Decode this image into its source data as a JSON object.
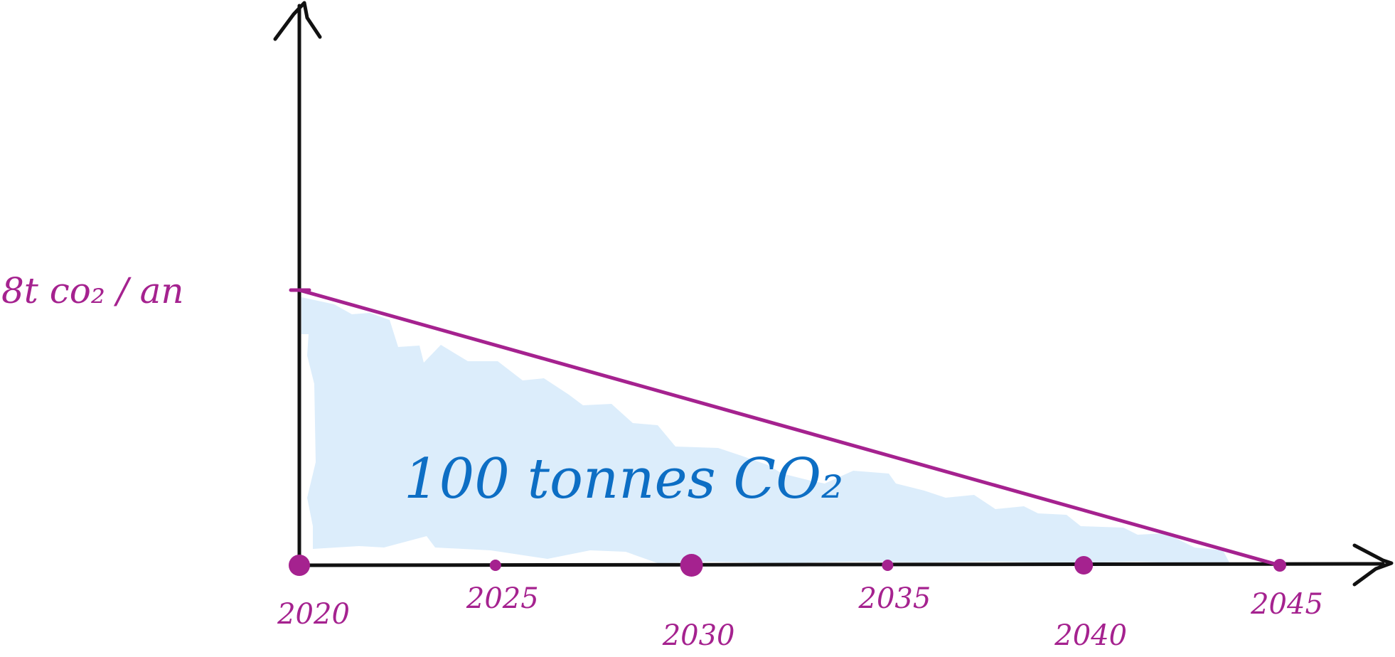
{
  "chart_data": {
    "type": "area",
    "x": [
      2020,
      2045
    ],
    "values": [
      8,
      0
    ],
    "x_ticks": [
      "2020",
      "2025",
      "2030",
      "2035",
      "2040",
      "2045"
    ],
    "xlim": [
      2020,
      2045
    ],
    "ylim": [
      0,
      8
    ],
    "y_marker_label": "8t co₂ / an",
    "area_label": "100 tonnes CO₂",
    "grid": false,
    "colors": {
      "line": "#a5228f",
      "area_fill": "#dcedfb",
      "axis": "#111111",
      "tick_text": "#a5228f",
      "area_text": "#0d6ec4"
    }
  }
}
